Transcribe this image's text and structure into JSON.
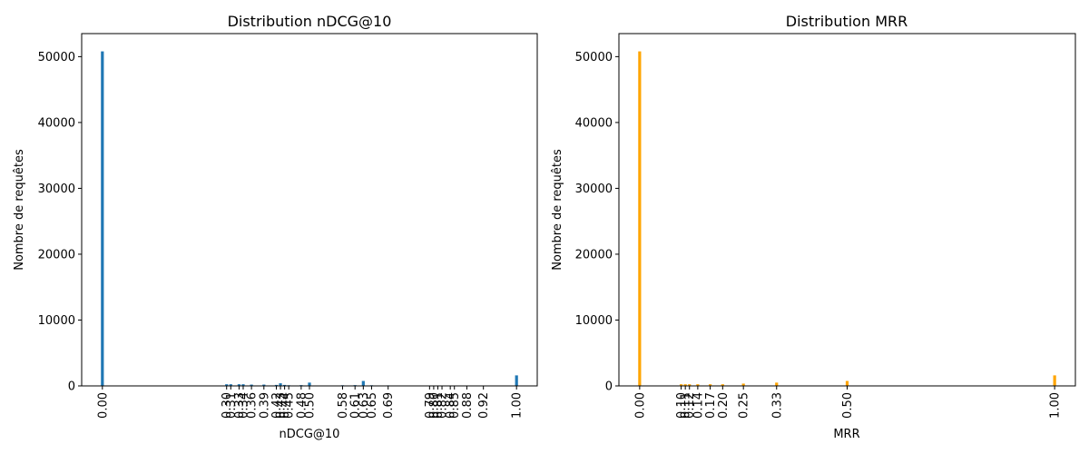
{
  "chart_data": [
    {
      "type": "bar",
      "title": "Distribution nDCG@10",
      "xlabel": "nDCG@10",
      "ylabel": "Nombre de requêtes",
      "color": "#1f77b4",
      "xlim": [
        -0.05,
        1.05
      ],
      "ylim": [
        0,
        53500
      ],
      "yticks": [
        0,
        10000,
        20000,
        30000,
        40000,
        50000
      ],
      "categories": [
        "0.00",
        "0.30",
        "0.31",
        "0.33",
        "0.34",
        "0.36",
        "0.39",
        "0.42",
        "0.43",
        "0.44",
        "0.45",
        "0.48",
        "0.50",
        "0.58",
        "0.61",
        "0.63",
        "0.65",
        "0.69",
        "0.79",
        "0.80",
        "0.81",
        "0.82",
        "0.84",
        "0.85",
        "0.88",
        "0.92",
        "1.00"
      ],
      "x": [
        0.0,
        0.3,
        0.31,
        0.33,
        0.34,
        0.36,
        0.39,
        0.42,
        0.43,
        0.44,
        0.45,
        0.48,
        0.5,
        0.58,
        0.61,
        0.63,
        0.65,
        0.69,
        0.79,
        0.8,
        0.81,
        0.82,
        0.84,
        0.85,
        0.88,
        0.92,
        1.0
      ],
      "values": [
        50800,
        250,
        250,
        250,
        250,
        200,
        200,
        150,
        400,
        150,
        100,
        120,
        500,
        100,
        120,
        750,
        100,
        80,
        60,
        60,
        60,
        60,
        60,
        60,
        60,
        60,
        1600
      ]
    },
    {
      "type": "bar",
      "title": "Distribution MRR",
      "xlabel": "MRR",
      "ylabel": "Nombre de requêtes",
      "color": "#ffa500",
      "xlim": [
        -0.05,
        1.05
      ],
      "ylim": [
        0,
        53500
      ],
      "yticks": [
        0,
        10000,
        20000,
        30000,
        40000,
        50000
      ],
      "categories": [
        "0.00",
        "0.10",
        "0.11",
        "0.12",
        "0.14",
        "0.17",
        "0.20",
        "0.25",
        "0.33",
        "0.50",
        "1.00"
      ],
      "x": [
        0.0,
        0.1,
        0.11,
        0.12,
        0.14,
        0.17,
        0.2,
        0.25,
        0.33,
        0.5,
        1.0
      ],
      "values": [
        50800,
        250,
        250,
        250,
        250,
        250,
        250,
        350,
        500,
        750,
        1600
      ]
    }
  ]
}
